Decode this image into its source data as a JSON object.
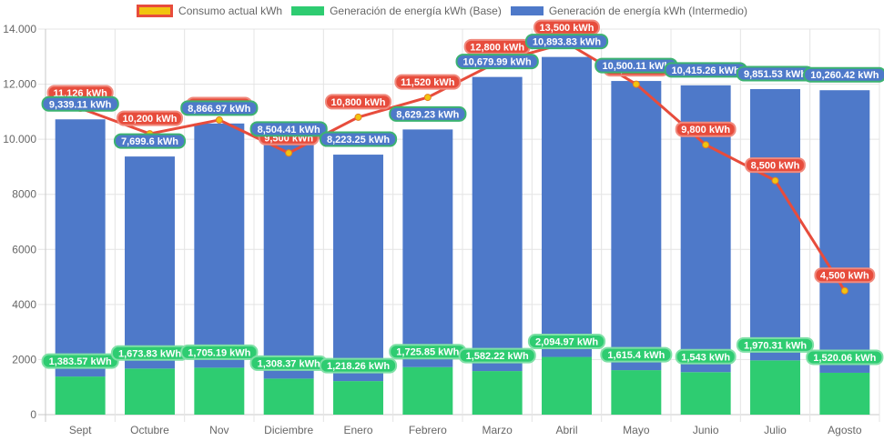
{
  "chart_data": {
    "type": "bar",
    "stacked": true,
    "title": "",
    "xlabel": "",
    "ylabel": "",
    "categories": [
      "Sept",
      "Octubre",
      "Nov",
      "Diciembre",
      "Enero",
      "Febrero",
      "Marzo",
      "Abril",
      "Mayo",
      "Junio",
      "Julio",
      "Agosto"
    ],
    "ylim": [
      0,
      14000
    ],
    "yticks": [
      0,
      2000,
      4000,
      6000,
      8000,
      10000,
      12000,
      14000
    ],
    "ytick_labels": [
      "0",
      "2000",
      "4000",
      "6000",
      "8000",
      "10.000",
      "12.000",
      "14.000"
    ],
    "grid": true,
    "legend_position": "top-center",
    "unit_suffix": " kWh",
    "series": [
      {
        "name": "Consumo actual kWh",
        "type": "line",
        "color": "#e74c3c",
        "point_color": "#f1c40f",
        "values": [
          11126,
          10200,
          10700,
          9500,
          10800,
          11520,
          12800,
          13500,
          12000,
          9800,
          8500,
          4500
        ],
        "labels": [
          "11,126 kWh",
          "10,200 kWh",
          "10,700 kWh",
          "9,500 kWh",
          "10,800 kWh",
          "11,520 kWh",
          "12,800 kWh",
          "13,500 kWh",
          "12,000 kWh",
          "9,800 kWh",
          "8,500 kWh",
          "4,500 kWh"
        ]
      },
      {
        "name": "Generación de energía kWh (Base)",
        "type": "bar",
        "color": "#2ecc71",
        "values": [
          1383.57,
          1673.83,
          1705.19,
          1308.37,
          1218.26,
          1725.85,
          1582.22,
          2094.97,
          1615.4,
          1543,
          1970.31,
          1520.06
        ],
        "labels": [
          "1,383.57 kWh",
          "1,673.83 kWh",
          "1,705.19 kWh",
          "1,308.37 kWh",
          "1,218.26 kWh",
          "1,725.85 kWh",
          "1,582.22 kWh",
          "2,094.97 kWh",
          "1,615.4 kWh",
          "1,543 kWh",
          "1,970.31 kWh",
          "1,520.06 kWh"
        ]
      },
      {
        "name": "Generación de energía kWh (Intermedio)",
        "type": "bar",
        "color": "#4e79c9",
        "values": [
          9339.11,
          7699.6,
          8866.97,
          8504.41,
          8223.25,
          8629.23,
          10679.99,
          10893.83,
          10500.11,
          10415.26,
          9851.53,
          10260.42
        ],
        "labels": [
          "9,339.11 kWh",
          "7,699.6 kWh",
          "8,866.97 kWh",
          "8,504.41 kWh",
          "8,223.25 kWh",
          "8,629.23 kWh",
          "10,679.99 kWh",
          "10,893.83 kWh",
          "10,500.11 kWh",
          "10,415.26 kWh",
          "9,851.53 kWh",
          "10,260.42 kWh"
        ]
      }
    ]
  },
  "legend": {
    "items": [
      {
        "label": "Consumo actual kWh"
      },
      {
        "label": "Generación de energía kWh (Base)"
      },
      {
        "label": "Generación de energía kWh (Intermedio)"
      }
    ]
  }
}
